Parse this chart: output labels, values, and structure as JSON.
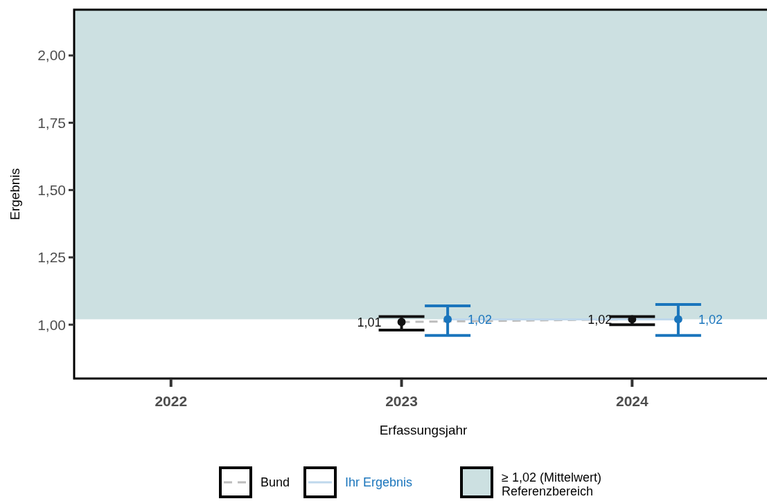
{
  "chart_data": {
    "type": "scatter",
    "xlabel": "Erfassungsjahr",
    "ylabel": "Ergebnis",
    "xlim": [
      2021.58,
      2024.6
    ],
    "xticks": [
      2022,
      2023,
      2024
    ],
    "ylim": [
      0.8,
      2.17
    ],
    "yticks": [
      {
        "value": 1,
        "label": "1,00"
      },
      {
        "value": 1.25,
        "label": "1,25"
      },
      {
        "value": 1.5,
        "label": "1,50"
      },
      {
        "value": 1.75,
        "label": "1,75"
      },
      {
        "value": 2,
        "label": "2,00"
      }
    ],
    "series": [
      {
        "name": "Bund",
        "type": "line",
        "color": "#bcbcbc",
        "x": [
          2023,
          2024
        ],
        "values": [
          1.01,
          1.02
        ],
        "line_style": "dashed",
        "marker": "none"
      },
      {
        "name": "Ihr Ergebnis",
        "type": "line",
        "color": "#bfd8ec",
        "x": [
          2023.2,
          2024.2
        ],
        "values": [
          1.02,
          1.02
        ],
        "line_style": "solid",
        "marker": "none"
      },
      {
        "color": "#111111",
        "x": [
          2023,
          2024
        ],
        "values": [
          1.01,
          1.02
        ],
        "errors": [
          [
            0.98,
            1.03
          ],
          [
            1.0,
            1.03
          ]
        ],
        "value_labels": [
          "1,01",
          "1,02"
        ]
      },
      {
        "color": "#1a75bc",
        "x": [
          2023.2,
          2024.2
        ],
        "values": [
          1.02,
          1.02
        ],
        "errors": [
          [
            0.96,
            1.07
          ],
          [
            0.96,
            1.075
          ]
        ],
        "value_labels": [
          "1,02",
          "1,02"
        ]
      }
    ],
    "bands": [
      {
        "axis": "y",
        "from": 1.02,
        "to": 2.17,
        "label": "≥ 1,02 (Mittelwert)\nReferenzbereich",
        "color": "#cce0e1"
      }
    ],
    "marker": "circle",
    "legend": "bottom",
    "grid": false
  }
}
